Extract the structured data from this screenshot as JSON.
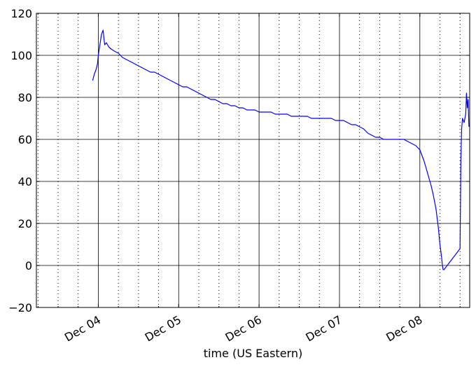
{
  "chart_data": {
    "type": "line",
    "title": "",
    "xlabel": "time (US Eastern)",
    "ylabel": "",
    "ylim": [
      -20,
      120
    ],
    "xlim": [
      -0.77,
      4.62
    ],
    "yticks": [
      -20,
      0,
      20,
      40,
      60,
      80,
      100,
      120
    ],
    "ytick_labels": [
      "−20",
      "0",
      "20",
      "40",
      "60",
      "80",
      "100",
      "120"
    ],
    "xticks": [
      0,
      1,
      2,
      3,
      4
    ],
    "xtick_labels": [
      "Dec 04",
      "Dec 05",
      "Dec 06",
      "Dec 07",
      "Dec 08"
    ],
    "x_unit": "days since Dec 04 00:00",
    "grid": {
      "major": "solid",
      "minor": "dotted",
      "minor_per_day": 4
    },
    "series": [
      {
        "name": "",
        "color": "#0000ff",
        "x": [
          -0.07,
          -0.05,
          -0.03,
          -0.01,
          0.0,
          0.02,
          0.04,
          0.06,
          0.07,
          0.08,
          0.1,
          0.13,
          0.16,
          0.2,
          0.25,
          0.3,
          0.35,
          0.4,
          0.45,
          0.5,
          0.55,
          0.6,
          0.65,
          0.7,
          0.75,
          0.8,
          0.85,
          0.9,
          0.95,
          1.0,
          1.05,
          1.1,
          1.15,
          1.2,
          1.25,
          1.3,
          1.35,
          1.4,
          1.45,
          1.5,
          1.55,
          1.6,
          1.65,
          1.7,
          1.75,
          1.8,
          1.85,
          1.9,
          1.95,
          2.0,
          2.05,
          2.1,
          2.15,
          2.2,
          2.25,
          2.3,
          2.35,
          2.4,
          2.45,
          2.5,
          2.55,
          2.6,
          2.65,
          2.7,
          2.75,
          2.8,
          2.85,
          2.9,
          2.95,
          3.0,
          3.05,
          3.1,
          3.15,
          3.2,
          3.25,
          3.3,
          3.35,
          3.4,
          3.45,
          3.5,
          3.55,
          3.6,
          3.65,
          3.7,
          3.75,
          3.8,
          3.85,
          3.9,
          3.95,
          4.0,
          4.05,
          4.08,
          4.11,
          4.14,
          4.17,
          4.2,
          4.23,
          4.25,
          4.27,
          4.28,
          4.29,
          4.3,
          4.5,
          4.51,
          4.52,
          4.53,
          4.55,
          4.57,
          4.58,
          4.59,
          4.6,
          4.61
        ],
        "y": [
          88,
          91,
          93,
          96,
          100,
          105,
          110,
          112,
          108,
          105,
          106,
          104,
          103,
          102,
          101,
          99,
          98,
          97,
          96,
          95,
          94,
          93,
          92,
          92,
          91,
          90,
          89,
          88,
          87,
          86,
          85,
          85,
          84,
          83,
          82,
          81,
          80,
          79,
          79,
          78,
          77,
          77,
          76,
          76,
          75,
          75,
          74,
          74,
          74,
          73,
          73,
          73,
          73,
          72,
          72,
          72,
          72,
          71,
          71,
          71,
          71,
          71,
          70,
          70,
          70,
          70,
          70,
          70,
          69,
          69,
          69,
          68,
          67,
          67,
          66,
          65,
          63,
          62,
          61,
          61,
          60,
          60,
          60,
          60,
          60,
          60,
          59,
          58,
          57,
          55,
          50,
          46,
          42,
          38,
          33,
          27,
          18,
          10,
          4,
          0,
          -2,
          -2,
          8,
          50,
          65,
          70,
          68,
          72,
          82,
          75,
          79,
          66
        ]
      }
    ]
  }
}
